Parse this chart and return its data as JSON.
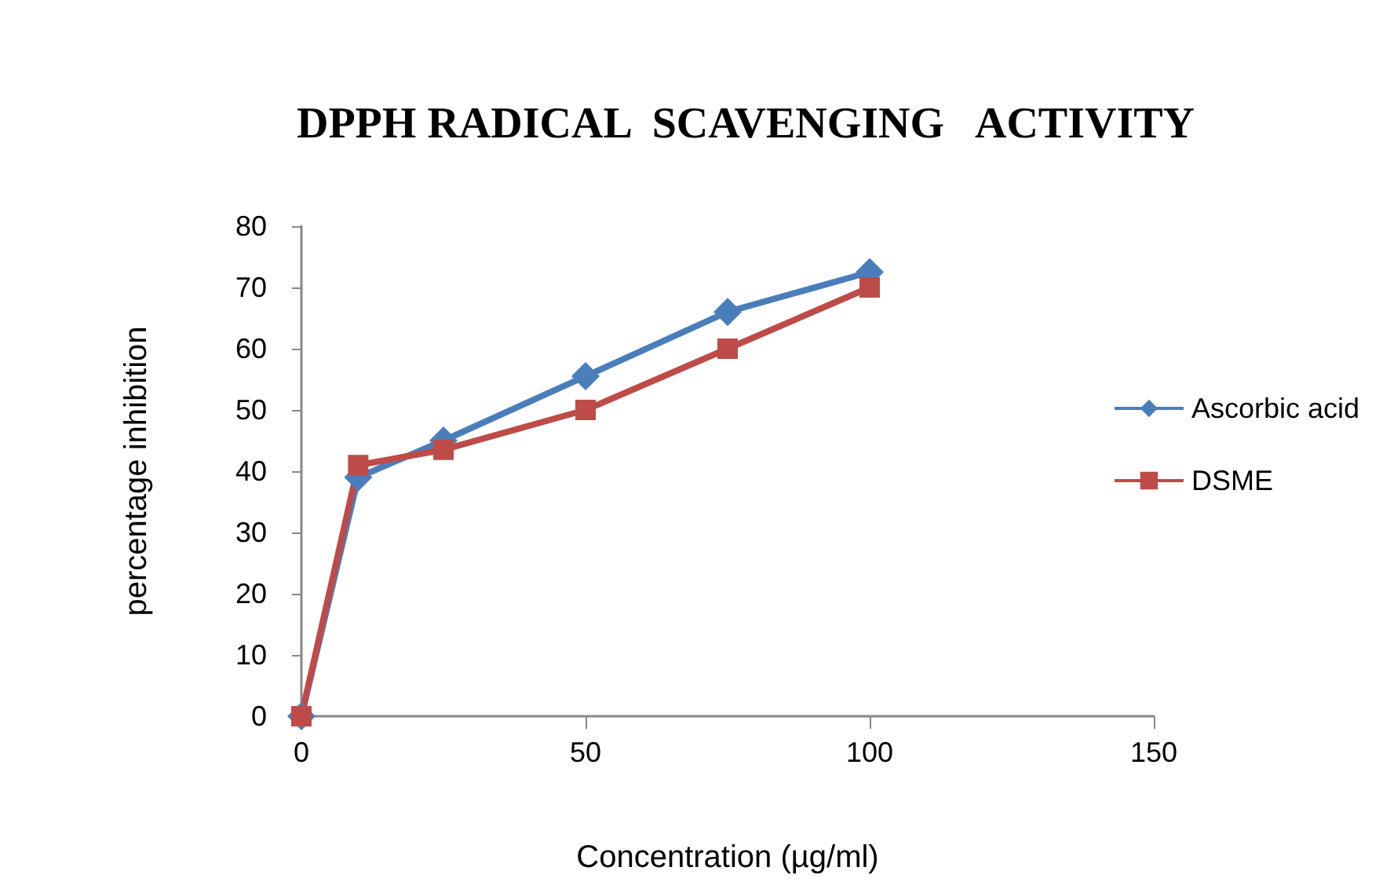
{
  "chart_data": {
    "type": "line",
    "title": "DPPH RADICAL  SCAVENGING   ACTIVITY",
    "xlabel": "Concentration (µg/ml)",
    "ylabel": "percentage inhibition",
    "x": [
      0,
      10,
      25,
      50,
      75,
      100
    ],
    "series": [
      {
        "name": "Ascorbic acid",
        "color": "#4a7ebb",
        "marker": "diamond",
        "values": [
          0,
          39,
          45,
          55.5,
          66,
          72.5
        ]
      },
      {
        "name": "DSME",
        "color": "#be4b48",
        "marker": "square",
        "values": [
          0,
          41,
          43.5,
          50,
          60,
          70
        ]
      }
    ],
    "xlim": [
      0,
      150
    ],
    "xticks": [
      0,
      50,
      100,
      150
    ],
    "ylim": [
      0,
      80
    ],
    "yticks": [
      0,
      10,
      20,
      30,
      40,
      50,
      60,
      70,
      80
    ],
    "grid": false,
    "legend": "right",
    "line_style": "solid"
  }
}
